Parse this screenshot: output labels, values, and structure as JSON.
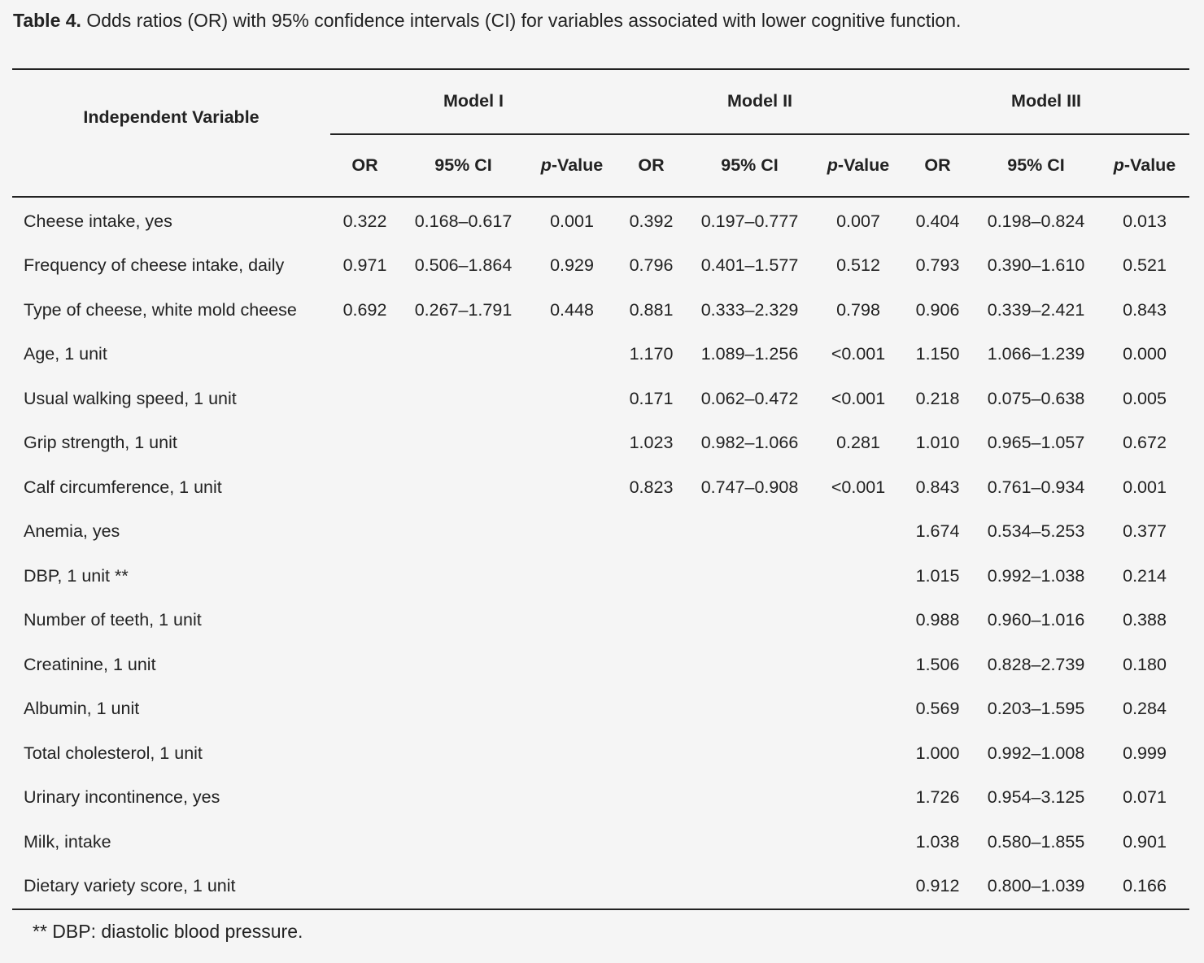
{
  "caption": {
    "label": "Table 4.",
    "text": " Odds ratios (OR) with 95% confidence intervals (CI) for variables associated with lower cognitive function."
  },
  "header": {
    "variable": "Independent Variable",
    "models": [
      "Model I",
      "Model II",
      "Model III"
    ],
    "or": "OR",
    "ci": "95% CI",
    "p_italic": "p",
    "p_rest": "-Value"
  },
  "rows": [
    {
      "name": "Cheese intake, yes",
      "m1": [
        "0.322",
        "0.168–0.617",
        "0.001"
      ],
      "m2": [
        "0.392",
        "0.197–0.777",
        "0.007"
      ],
      "m3": [
        "0.404",
        "0.198–0.824",
        "0.013"
      ]
    },
    {
      "name": "Frequency of cheese intake, daily",
      "m1": [
        "0.971",
        "0.506–1.864",
        "0.929"
      ],
      "m2": [
        "0.796",
        "0.401–1.577",
        "0.512"
      ],
      "m3": [
        "0.793",
        "0.390–1.610",
        "0.521"
      ]
    },
    {
      "name": "Type of cheese, white mold cheese",
      "m1": [
        "0.692",
        "0.267–1.791",
        "0.448"
      ],
      "m2": [
        "0.881",
        "0.333–2.329",
        "0.798"
      ],
      "m3": [
        "0.906",
        "0.339–2.421",
        "0.843"
      ]
    },
    {
      "name": "Age, 1 unit",
      "m1": [
        "",
        "",
        ""
      ],
      "m2": [
        "1.170",
        "1.089–1.256",
        "<0.001"
      ],
      "m3": [
        "1.150",
        "1.066–1.239",
        "0.000"
      ]
    },
    {
      "name": "Usual walking speed, 1 unit",
      "m1": [
        "",
        "",
        ""
      ],
      "m2": [
        "0.171",
        "0.062–0.472",
        "<0.001"
      ],
      "m3": [
        "0.218",
        "0.075–0.638",
        "0.005"
      ]
    },
    {
      "name": "Grip strength, 1 unit",
      "m1": [
        "",
        "",
        ""
      ],
      "m2": [
        "1.023",
        "0.982–1.066",
        "0.281"
      ],
      "m3": [
        "1.010",
        "0.965–1.057",
        "0.672"
      ]
    },
    {
      "name": "Calf circumference, 1 unit",
      "m1": [
        "",
        "",
        ""
      ],
      "m2": [
        "0.823",
        "0.747–0.908",
        "<0.001"
      ],
      "m3": [
        "0.843",
        "0.761–0.934",
        "0.001"
      ]
    },
    {
      "name": "Anemia, yes",
      "m1": [
        "",
        "",
        ""
      ],
      "m2": [
        "",
        "",
        ""
      ],
      "m3": [
        "1.674",
        "0.534–5.253",
        "0.377"
      ]
    },
    {
      "name": "DBP, 1 unit **",
      "m1": [
        "",
        "",
        ""
      ],
      "m2": [
        "",
        "",
        ""
      ],
      "m3": [
        "1.015",
        "0.992–1.038",
        "0.214"
      ]
    },
    {
      "name": "Number of teeth, 1 unit",
      "m1": [
        "",
        "",
        ""
      ],
      "m2": [
        "",
        "",
        ""
      ],
      "m3": [
        "0.988",
        "0.960–1.016",
        "0.388"
      ]
    },
    {
      "name": "Creatinine, 1 unit",
      "m1": [
        "",
        "",
        ""
      ],
      "m2": [
        "",
        "",
        ""
      ],
      "m3": [
        "1.506",
        "0.828–2.739",
        "0.180"
      ]
    },
    {
      "name": "Albumin, 1 unit",
      "m1": [
        "",
        "",
        ""
      ],
      "m2": [
        "",
        "",
        ""
      ],
      "m3": [
        "0.569",
        "0.203–1.595",
        "0.284"
      ]
    },
    {
      "name": "Total cholesterol, 1 unit",
      "m1": [
        "",
        "",
        ""
      ],
      "m2": [
        "",
        "",
        ""
      ],
      "m3": [
        "1.000",
        "0.992–1.008",
        "0.999"
      ]
    },
    {
      "name": "Urinary incontinence, yes",
      "m1": [
        "",
        "",
        ""
      ],
      "m2": [
        "",
        "",
        ""
      ],
      "m3": [
        "1.726",
        "0.954–3.125",
        "0.071"
      ]
    },
    {
      "name": "Milk, intake",
      "m1": [
        "",
        "",
        ""
      ],
      "m2": [
        "",
        "",
        ""
      ],
      "m3": [
        "1.038",
        "0.580–1.855",
        "0.901"
      ]
    },
    {
      "name": "Dietary variety score, 1 unit",
      "m1": [
        "",
        "",
        ""
      ],
      "m2": [
        "",
        "",
        ""
      ],
      "m3": [
        "0.912",
        "0.800–1.039",
        "0.166"
      ]
    }
  ],
  "footnote": "** DBP: diastolic blood pressure."
}
